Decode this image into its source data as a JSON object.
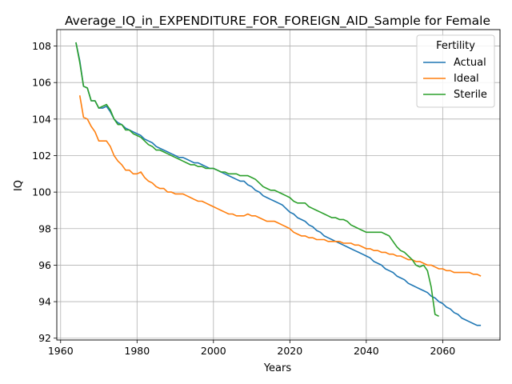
{
  "chart_data": {
    "type": "line",
    "title": "Average_IQ_in_EXPENDITURE_FOR_FOREIGN_AID_Sample for Female",
    "xlabel": "Years",
    "ylabel": "IQ",
    "xlim": [
      1959,
      2075
    ],
    "ylim": [
      91.9,
      108.9
    ],
    "xticks": [
      1960,
      1980,
      2000,
      2020,
      2040,
      2060
    ],
    "yticks": [
      92,
      94,
      96,
      98,
      100,
      102,
      104,
      106,
      108
    ],
    "grid": true,
    "legend": {
      "title": "Fertility",
      "position": "top-right"
    },
    "series": [
      {
        "name": "Actual",
        "color": "#1f77b4",
        "points": [
          [
            1964,
            108.2
          ],
          [
            1965,
            107.2
          ],
          [
            1966,
            105.8
          ],
          [
            1967,
            105.7
          ],
          [
            1968,
            105.0
          ],
          [
            1969,
            105.0
          ],
          [
            1970,
            104.6
          ],
          [
            1971,
            104.6
          ],
          [
            1972,
            104.7
          ],
          [
            1973,
            104.4
          ],
          [
            1974,
            104.0
          ],
          [
            1975,
            103.8
          ],
          [
            1976,
            103.7
          ],
          [
            1977,
            103.5
          ],
          [
            1978,
            103.4
          ],
          [
            1979,
            103.3
          ],
          [
            1980,
            103.2
          ],
          [
            1981,
            103.1
          ],
          [
            1982,
            102.9
          ],
          [
            1983,
            102.8
          ],
          [
            1984,
            102.7
          ],
          [
            1985,
            102.5
          ],
          [
            1986,
            102.4
          ],
          [
            1987,
            102.3
          ],
          [
            1988,
            102.2
          ],
          [
            1989,
            102.1
          ],
          [
            1990,
            102.0
          ],
          [
            1991,
            101.9
          ],
          [
            1992,
            101.9
          ],
          [
            1993,
            101.8
          ],
          [
            1994,
            101.7
          ],
          [
            1995,
            101.6
          ],
          [
            1996,
            101.6
          ],
          [
            1997,
            101.5
          ],
          [
            1998,
            101.4
          ],
          [
            1999,
            101.3
          ],
          [
            2000,
            101.3
          ],
          [
            2001,
            101.2
          ],
          [
            2002,
            101.1
          ],
          [
            2003,
            101.0
          ],
          [
            2004,
            100.9
          ],
          [
            2005,
            100.8
          ],
          [
            2006,
            100.7
          ],
          [
            2007,
            100.6
          ],
          [
            2008,
            100.6
          ],
          [
            2009,
            100.4
          ],
          [
            2010,
            100.3
          ],
          [
            2011,
            100.1
          ],
          [
            2012,
            100.0
          ],
          [
            2013,
            99.8
          ],
          [
            2014,
            99.7
          ],
          [
            2015,
            99.6
          ],
          [
            2016,
            99.5
          ],
          [
            2017,
            99.4
          ],
          [
            2018,
            99.3
          ],
          [
            2019,
            99.1
          ],
          [
            2020,
            98.9
          ],
          [
            2021,
            98.8
          ],
          [
            2022,
            98.6
          ],
          [
            2023,
            98.5
          ],
          [
            2024,
            98.4
          ],
          [
            2025,
            98.2
          ],
          [
            2026,
            98.1
          ],
          [
            2027,
            97.9
          ],
          [
            2028,
            97.8
          ],
          [
            2029,
            97.6
          ],
          [
            2030,
            97.5
          ],
          [
            2031,
            97.4
          ],
          [
            2032,
            97.3
          ],
          [
            2033,
            97.2
          ],
          [
            2034,
            97.1
          ],
          [
            2035,
            97.0
          ],
          [
            2036,
            96.9
          ],
          [
            2037,
            96.8
          ],
          [
            2038,
            96.7
          ],
          [
            2039,
            96.6
          ],
          [
            2040,
            96.5
          ],
          [
            2041,
            96.4
          ],
          [
            2042,
            96.2
          ],
          [
            2043,
            96.1
          ],
          [
            2044,
            96.0
          ],
          [
            2045,
            95.8
          ],
          [
            2046,
            95.7
          ],
          [
            2047,
            95.6
          ],
          [
            2048,
            95.4
          ],
          [
            2049,
            95.3
          ],
          [
            2050,
            95.2
          ],
          [
            2051,
            95.0
          ],
          [
            2052,
            94.9
          ],
          [
            2053,
            94.8
          ],
          [
            2054,
            94.7
          ],
          [
            2055,
            94.6
          ],
          [
            2056,
            94.5
          ],
          [
            2057,
            94.3
          ],
          [
            2058,
            94.2
          ],
          [
            2059,
            94.0
          ],
          [
            2060,
            93.9
          ],
          [
            2061,
            93.7
          ],
          [
            2062,
            93.6
          ],
          [
            2063,
            93.4
          ],
          [
            2064,
            93.3
          ],
          [
            2065,
            93.1
          ],
          [
            2066,
            93.0
          ],
          [
            2067,
            92.9
          ],
          [
            2068,
            92.8
          ],
          [
            2069,
            92.7
          ],
          [
            2070,
            92.7
          ]
        ]
      },
      {
        "name": "Ideal",
        "color": "#ff7f0e",
        "points": [
          [
            1965,
            105.3
          ],
          [
            1966,
            104.1
          ],
          [
            1967,
            104.0
          ],
          [
            1968,
            103.6
          ],
          [
            1969,
            103.3
          ],
          [
            1970,
            102.8
          ],
          [
            1971,
            102.8
          ],
          [
            1972,
            102.8
          ],
          [
            1973,
            102.5
          ],
          [
            1974,
            102.0
          ],
          [
            1975,
            101.7
          ],
          [
            1976,
            101.5
          ],
          [
            1977,
            101.2
          ],
          [
            1978,
            101.2
          ],
          [
            1979,
            101.0
          ],
          [
            1980,
            101.0
          ],
          [
            1981,
            101.1
          ],
          [
            1982,
            100.8
          ],
          [
            1983,
            100.6
          ],
          [
            1984,
            100.5
          ],
          [
            1985,
            100.3
          ],
          [
            1986,
            100.2
          ],
          [
            1987,
            100.2
          ],
          [
            1988,
            100.0
          ],
          [
            1989,
            100.0
          ],
          [
            1990,
            99.9
          ],
          [
            1991,
            99.9
          ],
          [
            1992,
            99.9
          ],
          [
            1993,
            99.8
          ],
          [
            1994,
            99.7
          ],
          [
            1995,
            99.6
          ],
          [
            1996,
            99.5
          ],
          [
            1997,
            99.5
          ],
          [
            1998,
            99.4
          ],
          [
            1999,
            99.3
          ],
          [
            2000,
            99.2
          ],
          [
            2001,
            99.1
          ],
          [
            2002,
            99.0
          ],
          [
            2003,
            98.9
          ],
          [
            2004,
            98.8
          ],
          [
            2005,
            98.8
          ],
          [
            2006,
            98.7
          ],
          [
            2007,
            98.7
          ],
          [
            2008,
            98.7
          ],
          [
            2009,
            98.8
          ],
          [
            2010,
            98.7
          ],
          [
            2011,
            98.7
          ],
          [
            2012,
            98.6
          ],
          [
            2013,
            98.5
          ],
          [
            2014,
            98.4
          ],
          [
            2015,
            98.4
          ],
          [
            2016,
            98.4
          ],
          [
            2017,
            98.3
          ],
          [
            2018,
            98.2
          ],
          [
            2019,
            98.1
          ],
          [
            2020,
            98.0
          ],
          [
            2021,
            97.8
          ],
          [
            2022,
            97.7
          ],
          [
            2023,
            97.6
          ],
          [
            2024,
            97.6
          ],
          [
            2025,
            97.5
          ],
          [
            2026,
            97.5
          ],
          [
            2027,
            97.4
          ],
          [
            2028,
            97.4
          ],
          [
            2029,
            97.4
          ],
          [
            2030,
            97.3
          ],
          [
            2031,
            97.3
          ],
          [
            2032,
            97.3
          ],
          [
            2033,
            97.3
          ],
          [
            2034,
            97.2
          ],
          [
            2035,
            97.2
          ],
          [
            2036,
            97.2
          ],
          [
            2037,
            97.1
          ],
          [
            2038,
            97.1
          ],
          [
            2039,
            97.0
          ],
          [
            2040,
            96.9
          ],
          [
            2041,
            96.9
          ],
          [
            2042,
            96.8
          ],
          [
            2043,
            96.8
          ],
          [
            2044,
            96.7
          ],
          [
            2045,
            96.7
          ],
          [
            2046,
            96.6
          ],
          [
            2047,
            96.6
          ],
          [
            2048,
            96.5
          ],
          [
            2049,
            96.5
          ],
          [
            2050,
            96.4
          ],
          [
            2051,
            96.3
          ],
          [
            2052,
            96.3
          ],
          [
            2053,
            96.2
          ],
          [
            2054,
            96.2
          ],
          [
            2055,
            96.1
          ],
          [
            2056,
            96.0
          ],
          [
            2057,
            96.0
          ],
          [
            2058,
            95.9
          ],
          [
            2059,
            95.8
          ],
          [
            2060,
            95.8
          ],
          [
            2061,
            95.7
          ],
          [
            2062,
            95.7
          ],
          [
            2063,
            95.6
          ],
          [
            2064,
            95.6
          ],
          [
            2065,
            95.6
          ],
          [
            2066,
            95.6
          ],
          [
            2067,
            95.6
          ],
          [
            2068,
            95.5
          ],
          [
            2069,
            95.5
          ],
          [
            2070,
            95.4
          ]
        ]
      },
      {
        "name": "Sterile",
        "color": "#2ca02c",
        "points": [
          [
            1964,
            108.2
          ],
          [
            1965,
            107.1
          ],
          [
            1966,
            105.8
          ],
          [
            1967,
            105.7
          ],
          [
            1968,
            105.0
          ],
          [
            1969,
            105.0
          ],
          [
            1970,
            104.6
          ],
          [
            1971,
            104.7
          ],
          [
            1972,
            104.8
          ],
          [
            1973,
            104.5
          ],
          [
            1974,
            104.0
          ],
          [
            1975,
            103.7
          ],
          [
            1976,
            103.7
          ],
          [
            1977,
            103.4
          ],
          [
            1978,
            103.4
          ],
          [
            1979,
            103.2
          ],
          [
            1980,
            103.1
          ],
          [
            1981,
            103.0
          ],
          [
            1982,
            102.8
          ],
          [
            1983,
            102.6
          ],
          [
            1984,
            102.5
          ],
          [
            1985,
            102.3
          ],
          [
            1986,
            102.3
          ],
          [
            1987,
            102.2
          ],
          [
            1988,
            102.1
          ],
          [
            1989,
            102.0
          ],
          [
            1990,
            101.9
          ],
          [
            1991,
            101.8
          ],
          [
            1992,
            101.7
          ],
          [
            1993,
            101.6
          ],
          [
            1994,
            101.5
          ],
          [
            1995,
            101.5
          ],
          [
            1996,
            101.4
          ],
          [
            1997,
            101.4
          ],
          [
            1998,
            101.3
          ],
          [
            1999,
            101.3
          ],
          [
            2000,
            101.3
          ],
          [
            2001,
            101.2
          ],
          [
            2002,
            101.1
          ],
          [
            2003,
            101.1
          ],
          [
            2004,
            101.0
          ],
          [
            2005,
            101.0
          ],
          [
            2006,
            101.0
          ],
          [
            2007,
            100.9
          ],
          [
            2008,
            100.9
          ],
          [
            2009,
            100.9
          ],
          [
            2010,
            100.8
          ],
          [
            2011,
            100.7
          ],
          [
            2012,
            100.5
          ],
          [
            2013,
            100.3
          ],
          [
            2014,
            100.2
          ],
          [
            2015,
            100.1
          ],
          [
            2016,
            100.1
          ],
          [
            2017,
            100.0
          ],
          [
            2018,
            99.9
          ],
          [
            2019,
            99.8
          ],
          [
            2020,
            99.7
          ],
          [
            2021,
            99.5
          ],
          [
            2022,
            99.4
          ],
          [
            2023,
            99.4
          ],
          [
            2024,
            99.4
          ],
          [
            2025,
            99.2
          ],
          [
            2026,
            99.1
          ],
          [
            2027,
            99.0
          ],
          [
            2028,
            98.9
          ],
          [
            2029,
            98.8
          ],
          [
            2030,
            98.7
          ],
          [
            2031,
            98.6
          ],
          [
            2032,
            98.6
          ],
          [
            2033,
            98.5
          ],
          [
            2034,
            98.5
          ],
          [
            2035,
            98.4
          ],
          [
            2036,
            98.2
          ],
          [
            2037,
            98.1
          ],
          [
            2038,
            98.0
          ],
          [
            2039,
            97.9
          ],
          [
            2040,
            97.8
          ],
          [
            2041,
            97.8
          ],
          [
            2042,
            97.8
          ],
          [
            2043,
            97.8
          ],
          [
            2044,
            97.8
          ],
          [
            2045,
            97.7
          ],
          [
            2046,
            97.6
          ],
          [
            2047,
            97.3
          ],
          [
            2048,
            97.0
          ],
          [
            2049,
            96.8
          ],
          [
            2050,
            96.7
          ],
          [
            2051,
            96.5
          ],
          [
            2052,
            96.3
          ],
          [
            2053,
            96.0
          ],
          [
            2054,
            95.9
          ],
          [
            2055,
            96.0
          ],
          [
            2056,
            95.7
          ],
          [
            2057,
            94.8
          ],
          [
            2058,
            93.3
          ],
          [
            2059,
            93.2
          ]
        ]
      }
    ]
  }
}
